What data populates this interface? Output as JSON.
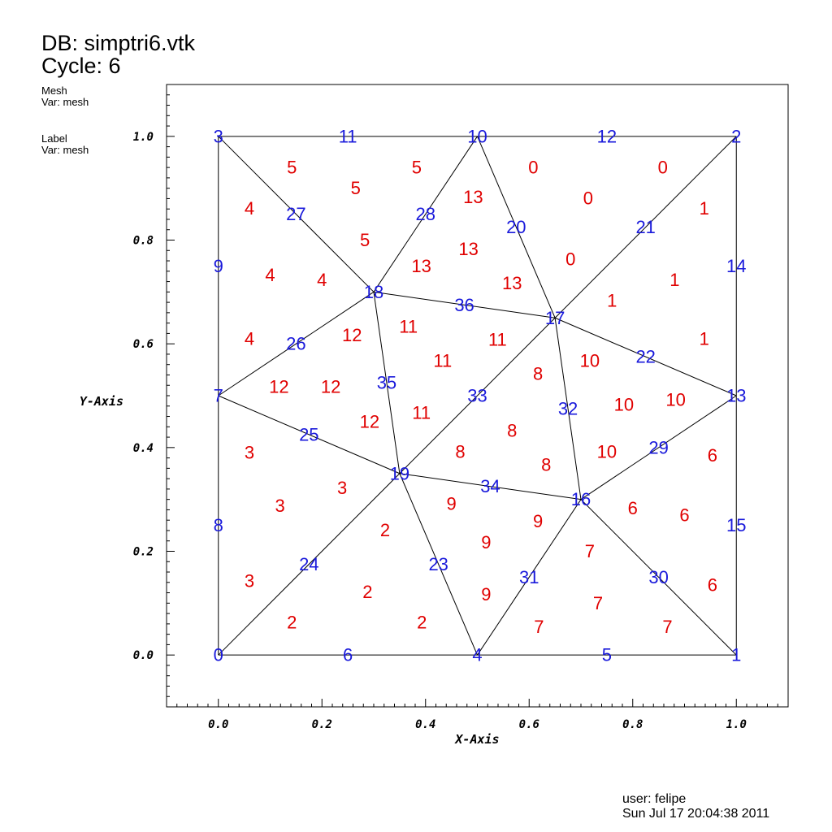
{
  "header": {
    "db": "DB: simptri6.vtk",
    "cycle": "Cycle: 6",
    "plots": [
      {
        "plot_type": "Mesh",
        "var": "Var: mesh"
      },
      {
        "plot_type": "Label",
        "var": "Var: mesh"
      }
    ]
  },
  "footer": {
    "user": "user: felipe",
    "timestamp": "Sun Jul 17 20:04:38 2011"
  },
  "colors": {
    "node": "#1a1adb",
    "zone": "#e00000",
    "mesh": "#000000"
  },
  "chart_data": {
    "type": "mesh",
    "xlabel": "X-Axis",
    "ylabel": "Y-Axis",
    "xlim": [
      -0.1,
      1.1
    ],
    "ylim": [
      -0.1,
      1.1
    ],
    "xticks": [
      "0.0",
      "0.2",
      "0.4",
      "0.6",
      "0.8",
      "1.0"
    ],
    "yticks": [
      "0.0",
      "0.2",
      "0.4",
      "0.6",
      "0.8",
      "1.0"
    ],
    "xtick_values": [
      0.0,
      0.2,
      0.4,
      0.6,
      0.8,
      1.0
    ],
    "ytick_values": [
      0.0,
      0.2,
      0.4,
      0.6,
      0.8,
      1.0
    ],
    "nodes": [
      {
        "id": "0",
        "x": 0.0,
        "y": 0.0
      },
      {
        "id": "1",
        "x": 1.0,
        "y": 0.0
      },
      {
        "id": "2",
        "x": 1.0,
        "y": 1.0
      },
      {
        "id": "3",
        "x": 0.0,
        "y": 1.0
      },
      {
        "id": "4",
        "x": 0.5,
        "y": 0.0
      },
      {
        "id": "5",
        "x": 0.75,
        "y": 0.0
      },
      {
        "id": "6",
        "x": 0.25,
        "y": 0.0
      },
      {
        "id": "7",
        "x": 0.0,
        "y": 0.5
      },
      {
        "id": "8",
        "x": 0.0,
        "y": 0.25
      },
      {
        "id": "9",
        "x": 0.0,
        "y": 0.75
      },
      {
        "id": "10",
        "x": 0.5,
        "y": 1.0
      },
      {
        "id": "11",
        "x": 0.25,
        "y": 1.0
      },
      {
        "id": "12",
        "x": 0.75,
        "y": 1.0
      },
      {
        "id": "13",
        "x": 1.0,
        "y": 0.5
      },
      {
        "id": "14",
        "x": 1.0,
        "y": 0.75
      },
      {
        "id": "15",
        "x": 1.0,
        "y": 0.25
      },
      {
        "id": "16",
        "x": 0.7,
        "y": 0.3
      },
      {
        "id": "17",
        "x": 0.65,
        "y": 0.65
      },
      {
        "id": "18",
        "x": 0.3,
        "y": 0.7
      },
      {
        "id": "19",
        "x": 0.35,
        "y": 0.35
      },
      {
        "id": "20",
        "x": 0.575,
        "y": 0.825
      },
      {
        "id": "21",
        "x": 0.825,
        "y": 0.825
      },
      {
        "id": "22",
        "x": 0.825,
        "y": 0.575
      },
      {
        "id": "23",
        "x": 0.425,
        "y": 0.175
      },
      {
        "id": "24",
        "x": 0.175,
        "y": 0.175
      },
      {
        "id": "25",
        "x": 0.175,
        "y": 0.425
      },
      {
        "id": "26",
        "x": 0.15,
        "y": 0.6
      },
      {
        "id": "27",
        "x": 0.15,
        "y": 0.85
      },
      {
        "id": "28",
        "x": 0.4,
        "y": 0.85
      },
      {
        "id": "29",
        "x": 0.85,
        "y": 0.4
      },
      {
        "id": "30",
        "x": 0.85,
        "y": 0.15
      },
      {
        "id": "31",
        "x": 0.6,
        "y": 0.15
      },
      {
        "id": "32",
        "x": 0.675,
        "y": 0.475
      },
      {
        "id": "33",
        "x": 0.5,
        "y": 0.5
      },
      {
        "id": "34",
        "x": 0.525,
        "y": 0.325
      },
      {
        "id": "35",
        "x": 0.325,
        "y": 0.525
      },
      {
        "id": "36",
        "x": 0.475,
        "y": 0.675
      }
    ],
    "edges": [
      [
        "0",
        "1"
      ],
      [
        "1",
        "2"
      ],
      [
        "2",
        "3"
      ],
      [
        "3",
        "0"
      ],
      [
        "3",
        "18"
      ],
      [
        "18",
        "10"
      ],
      [
        "10",
        "17"
      ],
      [
        "17",
        "2"
      ],
      [
        "17",
        "13"
      ],
      [
        "13",
        "16"
      ],
      [
        "16",
        "1"
      ],
      [
        "16",
        "4"
      ],
      [
        "4",
        "19"
      ],
      [
        "19",
        "0"
      ],
      [
        "19",
        "7"
      ],
      [
        "7",
        "18"
      ],
      [
        "18",
        "17"
      ],
      [
        "17",
        "16"
      ],
      [
        "16",
        "19"
      ],
      [
        "19",
        "18"
      ],
      [
        "19",
        "17"
      ]
    ],
    "zones": [
      {
        "id": "0",
        "x": 0.608,
        "y": 0.94
      },
      {
        "id": "0",
        "x": 0.714,
        "y": 0.881
      },
      {
        "id": "0",
        "x": 0.858,
        "y": 0.94
      },
      {
        "id": "0",
        "x": 0.68,
        "y": 0.763
      },
      {
        "id": "1",
        "x": 0.938,
        "y": 0.861
      },
      {
        "id": "1",
        "x": 0.881,
        "y": 0.723
      },
      {
        "id": "1",
        "x": 0.76,
        "y": 0.683
      },
      {
        "id": "1",
        "x": 0.938,
        "y": 0.61
      },
      {
        "id": "2",
        "x": 0.142,
        "y": 0.063
      },
      {
        "id": "2",
        "x": 0.288,
        "y": 0.122
      },
      {
        "id": "2",
        "x": 0.393,
        "y": 0.063
      },
      {
        "id": "2",
        "x": 0.322,
        "y": 0.241
      },
      {
        "id": "3",
        "x": 0.06,
        "y": 0.143
      },
      {
        "id": "3",
        "x": 0.119,
        "y": 0.288
      },
      {
        "id": "3",
        "x": 0.239,
        "y": 0.322
      },
      {
        "id": "3",
        "x": 0.06,
        "y": 0.39
      },
      {
        "id": "4",
        "x": 0.06,
        "y": 0.861
      },
      {
        "id": "4",
        "x": 0.1,
        "y": 0.733
      },
      {
        "id": "4",
        "x": 0.2,
        "y": 0.723
      },
      {
        "id": "4",
        "x": 0.06,
        "y": 0.61
      },
      {
        "id": "5",
        "x": 0.142,
        "y": 0.94
      },
      {
        "id": "5",
        "x": 0.265,
        "y": 0.9
      },
      {
        "id": "5",
        "x": 0.383,
        "y": 0.94
      },
      {
        "id": "5",
        "x": 0.283,
        "y": 0.8
      },
      {
        "id": "6",
        "x": 0.954,
        "y": 0.385
      },
      {
        "id": "6",
        "x": 0.9,
        "y": 0.27
      },
      {
        "id": "6",
        "x": 0.8,
        "y": 0.283
      },
      {
        "id": "6",
        "x": 0.954,
        "y": 0.135
      },
      {
        "id": "7",
        "x": 0.619,
        "y": 0.054
      },
      {
        "id": "7",
        "x": 0.733,
        "y": 0.1
      },
      {
        "id": "7",
        "x": 0.867,
        "y": 0.054
      },
      {
        "id": "7",
        "x": 0.717,
        "y": 0.2
      },
      {
        "id": "8",
        "x": 0.617,
        "y": 0.542
      },
      {
        "id": "8",
        "x": 0.567,
        "y": 0.433
      },
      {
        "id": "8",
        "x": 0.633,
        "y": 0.367
      },
      {
        "id": "8",
        "x": 0.467,
        "y": 0.392
      },
      {
        "id": "9",
        "x": 0.45,
        "y": 0.292
      },
      {
        "id": "9",
        "x": 0.617,
        "y": 0.258
      },
      {
        "id": "9",
        "x": 0.517,
        "y": 0.217
      },
      {
        "id": "9",
        "x": 0.517,
        "y": 0.117
      },
      {
        "id": "10",
        "x": 0.717,
        "y": 0.567
      },
      {
        "id": "10",
        "x": 0.783,
        "y": 0.483
      },
      {
        "id": "10",
        "x": 0.883,
        "y": 0.492
      },
      {
        "id": "10",
        "x": 0.75,
        "y": 0.392
      },
      {
        "id": "11",
        "x": 0.367,
        "y": 0.633
      },
      {
        "id": "11",
        "x": 0.433,
        "y": 0.567
      },
      {
        "id": "11",
        "x": 0.539,
        "y": 0.608
      },
      {
        "id": "11",
        "x": 0.392,
        "y": 0.467
      },
      {
        "id": "12",
        "x": 0.258,
        "y": 0.617
      },
      {
        "id": "12",
        "x": 0.217,
        "y": 0.517
      },
      {
        "id": "12",
        "x": 0.117,
        "y": 0.517
      },
      {
        "id": "12",
        "x": 0.292,
        "y": 0.45
      },
      {
        "id": "13",
        "x": 0.492,
        "y": 0.883
      },
      {
        "id": "13",
        "x": 0.483,
        "y": 0.783
      },
      {
        "id": "13",
        "x": 0.392,
        "y": 0.75
      },
      {
        "id": "13",
        "x": 0.567,
        "y": 0.717
      }
    ]
  }
}
